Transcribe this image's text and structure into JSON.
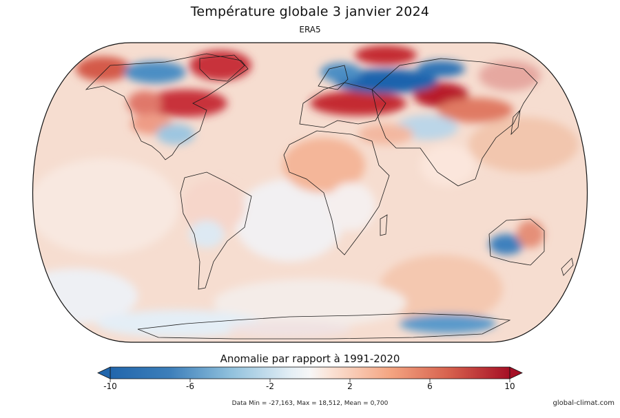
{
  "header": {
    "title": "Température globale 3 janvier 2024",
    "subtitle": "ERA5"
  },
  "colorbar": {
    "title": "Anomalie par rapport à 1991-2020",
    "min": -10,
    "max": 10,
    "ticks": [
      "-10",
      "-6",
      "-2",
      "2",
      "6",
      "10"
    ],
    "tick_values": [
      -10,
      -6,
      -2,
      2,
      6,
      10
    ],
    "colors": [
      "#2166ac",
      "#4393c3",
      "#92c5de",
      "#d1e5f0",
      "#f7f7f7",
      "#fddbc7",
      "#f4a582",
      "#d6604d",
      "#b2182b"
    ]
  },
  "footer": {
    "stats": "Data Min = -27,163, Max = 18,512, Mean = 0,700",
    "credit": "global-climat.com"
  }
}
